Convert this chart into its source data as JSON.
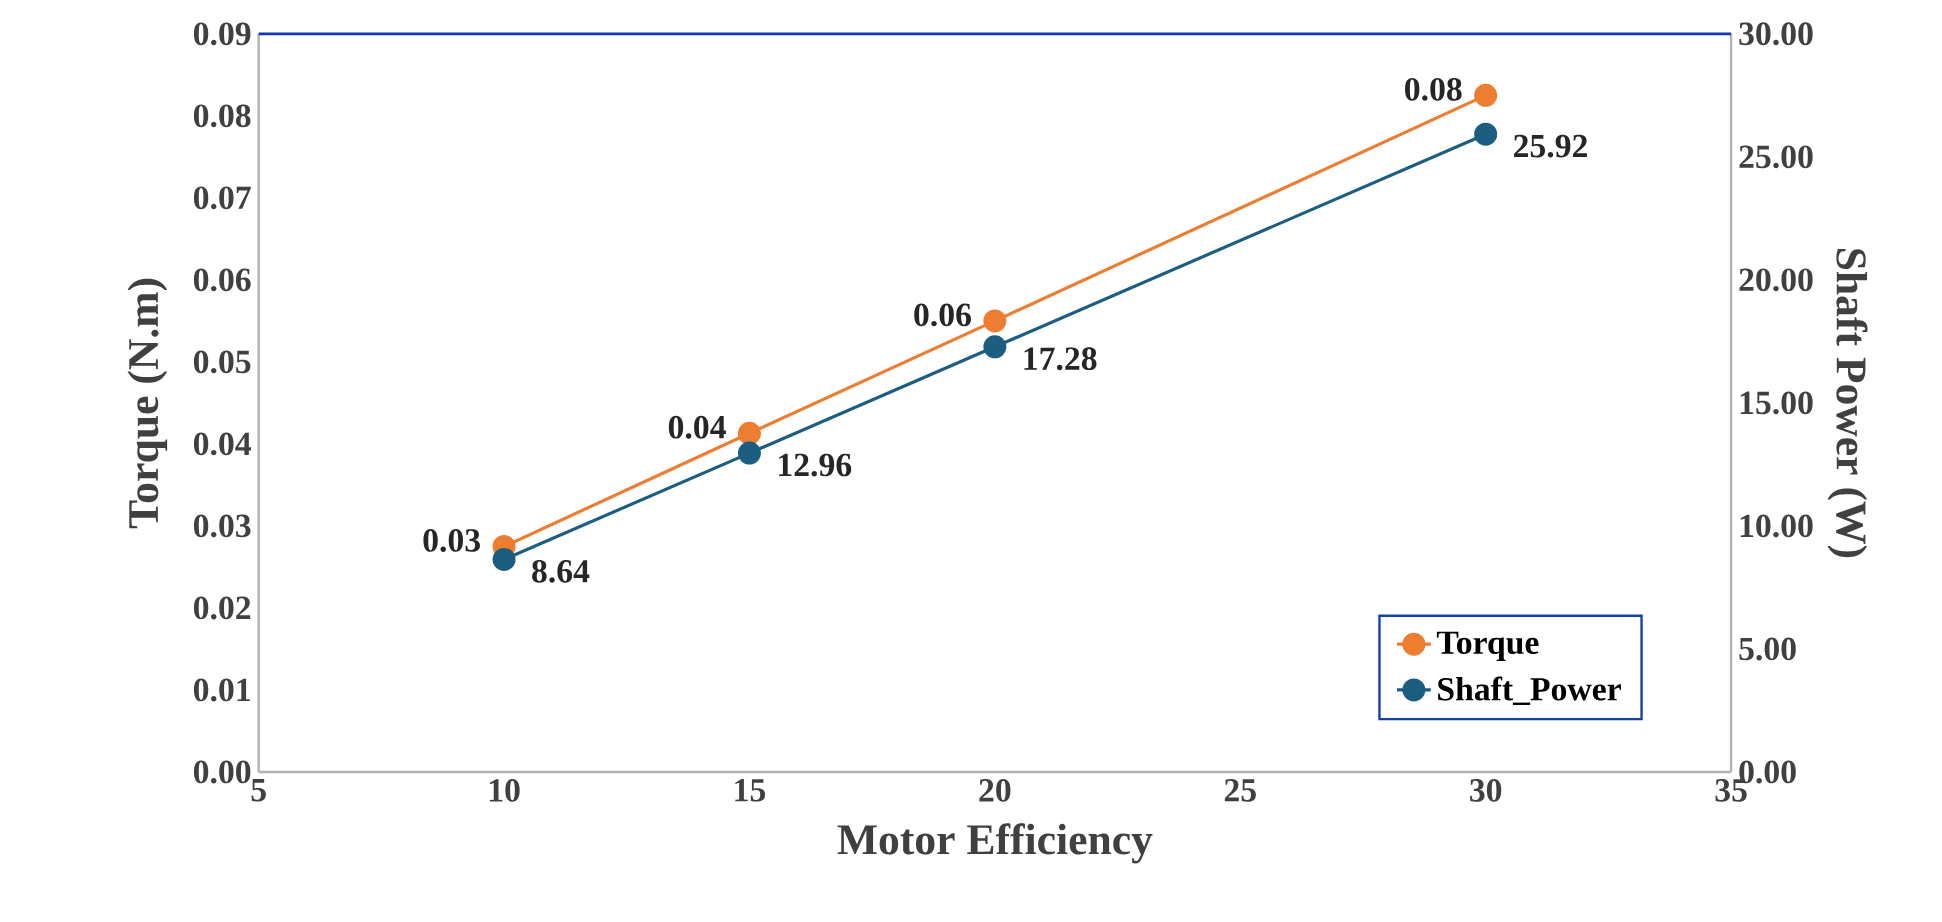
{
  "chart_data": {
    "type": "line",
    "xlabel": "Motor Efficiency",
    "ylabel": "Torque (N.m)",
    "y2label": "Shaft Power (W)",
    "x": [
      10,
      15,
      20,
      30
    ],
    "series": [
      {
        "name": "Torque",
        "color": "#ed7d31",
        "values": [
          0.0275,
          0.0413,
          0.055,
          0.0825
        ],
        "value_labels": [
          "0.03",
          "0.04",
          "0.06",
          "0.08"
        ]
      },
      {
        "name": "Shaft_Power",
        "color": "#1b5e80",
        "axis": "y2",
        "values": [
          8.64,
          12.96,
          17.28,
          25.92
        ],
        "value_labels": [
          "8.64",
          "12.96",
          "17.28",
          "25.92"
        ]
      }
    ],
    "xlim": [
      5,
      35
    ],
    "xticks": [
      5,
      10,
      15,
      20,
      25,
      30,
      35
    ],
    "ylim": [
      0,
      0.09
    ],
    "yticks": [
      {
        "value": 0,
        "label": "0.00"
      },
      {
        "value": 0.01,
        "label": "0.01"
      },
      {
        "value": 0.02,
        "label": "0.02"
      },
      {
        "value": 0.03,
        "label": "0.03"
      },
      {
        "value": 0.04,
        "label": "0.04"
      },
      {
        "value": 0.05,
        "label": "0.05"
      },
      {
        "value": 0.06,
        "label": "0.06"
      },
      {
        "value": 0.07,
        "label": "0.07"
      },
      {
        "value": 0.08,
        "label": "0.08"
      },
      {
        "value": 0.09,
        "label": "0.09"
      }
    ],
    "y2lim": [
      0,
      30
    ],
    "y2ticks": [
      {
        "value": 0,
        "label": "0.00"
      },
      {
        "value": 5,
        "label": "5.00"
      },
      {
        "value": 10,
        "label": "10.00"
      },
      {
        "value": 15,
        "label": "15.00"
      },
      {
        "value": 20,
        "label": "20.00"
      },
      {
        "value": 25,
        "label": "25.00"
      },
      {
        "value": 30,
        "label": "30.00"
      }
    ],
    "legend": "bottom right",
    "marker": "circle",
    "line_style": "solid"
  }
}
